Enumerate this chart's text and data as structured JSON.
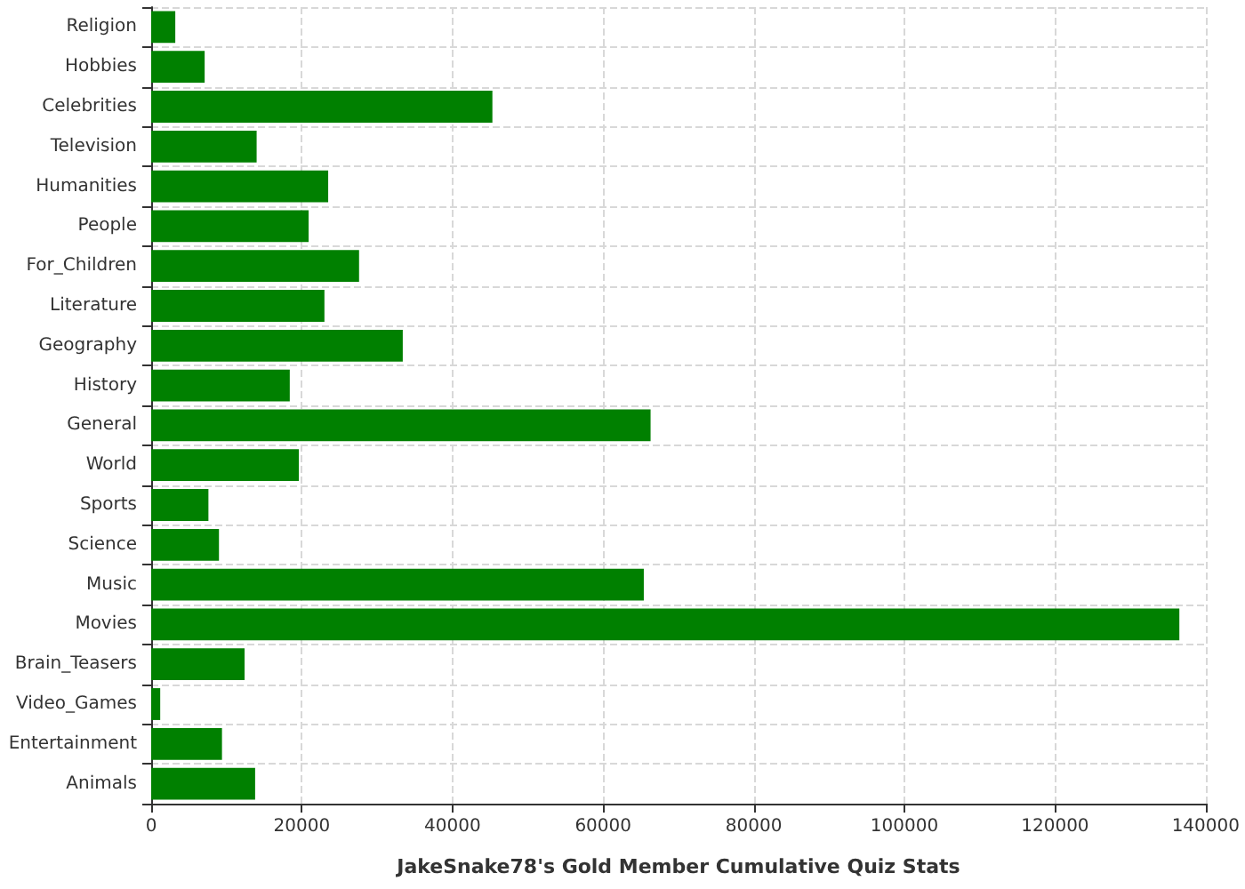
{
  "chart_data": {
    "type": "bar",
    "orientation": "horizontal",
    "xlabel": "JakeSnake78's Gold Member Cumulative Quiz Stats",
    "categories": [
      "Religion",
      "Hobbies",
      "Celebrities",
      "Television",
      "Humanities",
      "People",
      "For_Children",
      "Literature",
      "Geography",
      "History",
      "General",
      "World",
      "Sports",
      "Science",
      "Music",
      "Movies",
      "Brain_Teasers",
      "Video_Games",
      "Entertainment",
      "Animals"
    ],
    "values": [
      3200,
      7100,
      45300,
      14000,
      23500,
      20900,
      27600,
      23000,
      33400,
      18400,
      66300,
      19600,
      7600,
      9000,
      65400,
      136500,
      12400,
      1200,
      9400,
      13800
    ],
    "color": "#008000",
    "xlim": [
      0,
      140000
    ],
    "xticks": [
      0,
      20000,
      40000,
      60000,
      80000,
      100000,
      120000,
      140000
    ],
    "grid": true
  }
}
